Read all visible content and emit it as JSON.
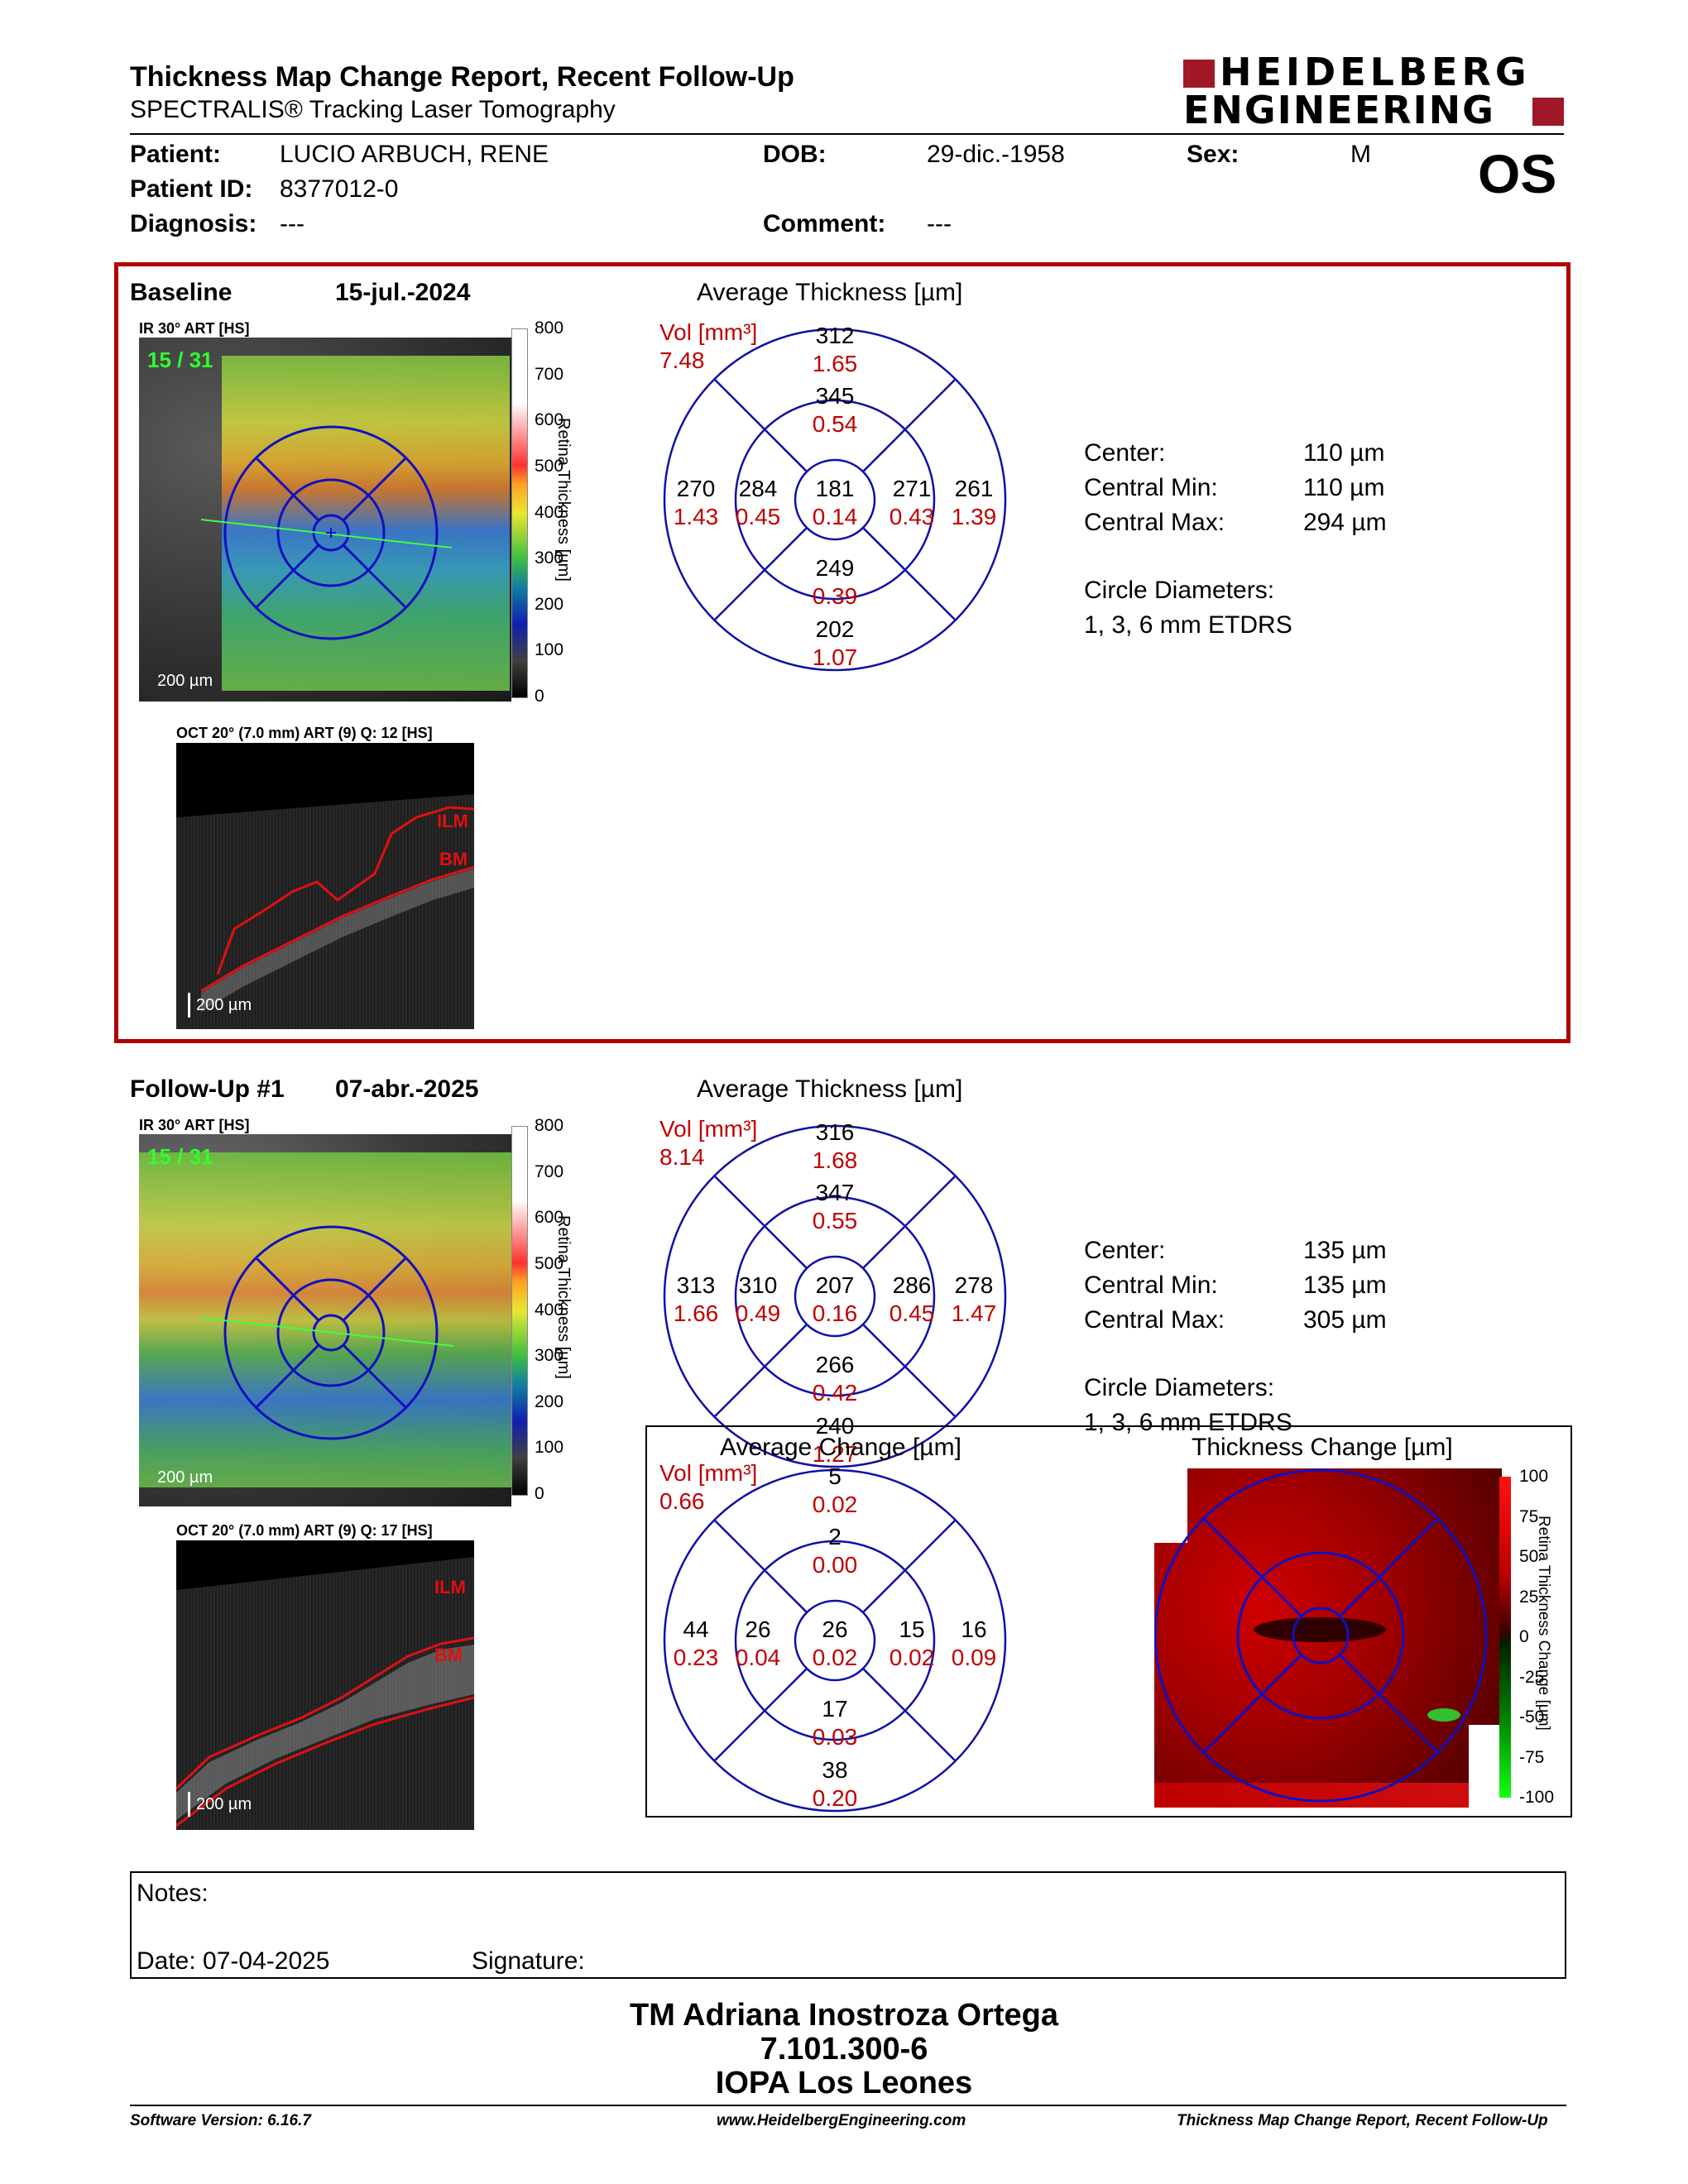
{
  "header": {
    "title": "Thickness Map Change Report, Recent Follow-Up",
    "subtitle": "SPECTRALIS® Tracking Laser Tomography",
    "logo_line1": "HEIDELBERG",
    "logo_line2": "ENGINEERING",
    "eye": "OS"
  },
  "patient": {
    "patient_label": "Patient:",
    "patient_value": "LUCIO ARBUCH, RENE",
    "id_label": "Patient ID:",
    "id_value": "8377012-0",
    "diag_label": "Diagnosis:",
    "diag_value": "---",
    "dob_label": "DOB:",
    "dob_value": "29-dic.-1958",
    "comment_label": "Comment:",
    "comment_value": "---",
    "sex_label": "Sex:",
    "sex_value": "M"
  },
  "baseline": {
    "label": "Baseline",
    "date": "15-jul.-2024",
    "ir_caption": "IR 30° ART [HS]",
    "frame": "15 / 31",
    "scale": "200 µm",
    "oct_caption": "OCT 20° (7.0 mm) ART (9) Q: 12 [HS]",
    "oct_scale": "200 µm",
    "ilm": "ILM",
    "bm": "BM",
    "colorbar_ticks": [
      "800",
      "700",
      "600",
      "500",
      "400",
      "300",
      "200",
      "100",
      "0"
    ],
    "colorbar_label": "Retina Thickness [µm]",
    "etdrs_title": "Average Thickness [µm]",
    "vol_label": "Vol [mm³]",
    "vol_value": "7.48",
    "sectors": {
      "outer_sup": [
        "312",
        "1.65"
      ],
      "inner_sup": [
        "345",
        "0.54"
      ],
      "outer_temp": [
        "270",
        "1.43"
      ],
      "inner_temp": [
        "284",
        "0.45"
      ],
      "center": [
        "181",
        "0.14"
      ],
      "inner_nas": [
        "271",
        "0.43"
      ],
      "outer_nas": [
        "261",
        "1.39"
      ],
      "inner_inf": [
        "249",
        "0.39"
      ],
      "outer_inf": [
        "202",
        "1.07"
      ]
    },
    "stats": {
      "center_label": "Center:",
      "center_value": "110 µm",
      "min_label": "Central Min:",
      "min_value": "110 µm",
      "max_label": "Central Max:",
      "max_value": "294 µm",
      "circ_label": "Circle Diameters:",
      "circ_value": "1, 3, 6 mm ETDRS"
    }
  },
  "followup": {
    "label": "Follow-Up #1",
    "date": "07-abr.-2025",
    "ir_caption": "IR 30° ART [HS]",
    "frame": "15 / 31",
    "scale": "200 µm",
    "oct_caption": "OCT 20° (7.0 mm) ART (9) Q: 17 [HS]",
    "oct_scale": "200 µm",
    "ilm": "ILM",
    "bm": "BM",
    "colorbar_ticks": [
      "800",
      "700",
      "600",
      "500",
      "400",
      "300",
      "200",
      "100",
      "0"
    ],
    "colorbar_label": "Retina Thickness [µm]",
    "etdrs_title": "Average Thickness [µm]",
    "vol_label": "Vol [mm³]",
    "vol_value": "8.14",
    "sectors": {
      "outer_sup": [
        "316",
        "1.68"
      ],
      "inner_sup": [
        "347",
        "0.55"
      ],
      "outer_temp": [
        "313",
        "1.66"
      ],
      "inner_temp": [
        "310",
        "0.49"
      ],
      "center": [
        "207",
        "0.16"
      ],
      "inner_nas": [
        "286",
        "0.45"
      ],
      "outer_nas": [
        "278",
        "1.47"
      ],
      "inner_inf": [
        "266",
        "0.42"
      ],
      "outer_inf": [
        "240",
        "1.27"
      ]
    },
    "stats": {
      "center_label": "Center:",
      "center_value": "135 µm",
      "min_label": "Central Min:",
      "min_value": "135 µm",
      "max_label": "Central Max:",
      "max_value": "305 µm",
      "circ_label": "Circle Diameters:",
      "circ_value": "1, 3, 6 mm ETDRS"
    }
  },
  "change": {
    "etdrs_title": "Average Change [µm]",
    "vol_label": "Vol [mm³]",
    "vol_value": "0.66",
    "sectors": {
      "outer_sup": [
        "5",
        "0.02"
      ],
      "inner_sup": [
        "2",
        "0.00"
      ],
      "outer_temp": [
        "44",
        "0.23"
      ],
      "inner_temp": [
        "26",
        "0.04"
      ],
      "center": [
        "26",
        "0.02"
      ],
      "inner_nas": [
        "15",
        "0.02"
      ],
      "outer_nas": [
        "16",
        "0.09"
      ],
      "inner_inf": [
        "17",
        "0.03"
      ],
      "outer_inf": [
        "38",
        "0.20"
      ]
    },
    "map_title": "Thickness Change [µm]",
    "colorbar_ticks": [
      "100",
      "75",
      "50",
      "25",
      "0",
      "-25",
      "-50",
      "-75",
      "-100"
    ],
    "colorbar_label": "Retina Thickness Change [µm]"
  },
  "notes": {
    "notes_label": "Notes:",
    "date_label": "Date: 07-04-2025",
    "signature_label": "Signature:"
  },
  "signature": {
    "line1": "TM Adriana Inostroza Ortega",
    "line2": "7.101.300-6",
    "line3": "IOPA Los Leones"
  },
  "footer": {
    "left": "Software Version: 6.16.7",
    "center": "www.HeidelbergEngineering.com",
    "right": "Thickness Map Change Report, Recent Follow-Up"
  }
}
